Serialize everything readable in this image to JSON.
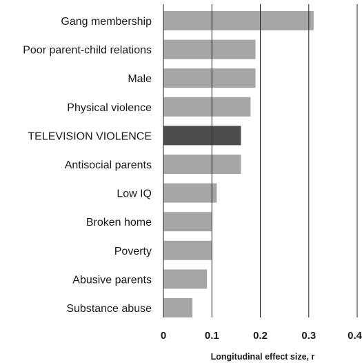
{
  "chart_data": {
    "type": "bar",
    "orientation": "horizontal",
    "categories": [
      "Gang membership",
      "Poor parent-child relations",
      "Male",
      "Physical violence",
      "TELEVISION VIOLENCE",
      "Antisocial parents",
      "Low IQ",
      "Broken home",
      "Poverty",
      "Abusive parents",
      "Substance abuse"
    ],
    "values": [
      0.31,
      0.19,
      0.19,
      0.18,
      0.16,
      0.16,
      0.11,
      0.1,
      0.1,
      0.09,
      0.06
    ],
    "highlight": "TELEVISION VIOLENCE",
    "xlabel": "Longitudinal effect size, r",
    "xlim": [
      0,
      0.4
    ],
    "xticks": [
      0,
      0.1,
      0.2,
      0.3,
      0.4
    ],
    "xtick_labels": [
      "0",
      "0.1",
      "0.2",
      "0.3",
      "0.4"
    ],
    "grid": "vertical",
    "colors": {
      "bar": "#a6a6a6",
      "highlight_bar": "#4d4d4d",
      "gridline": "#222222"
    }
  }
}
